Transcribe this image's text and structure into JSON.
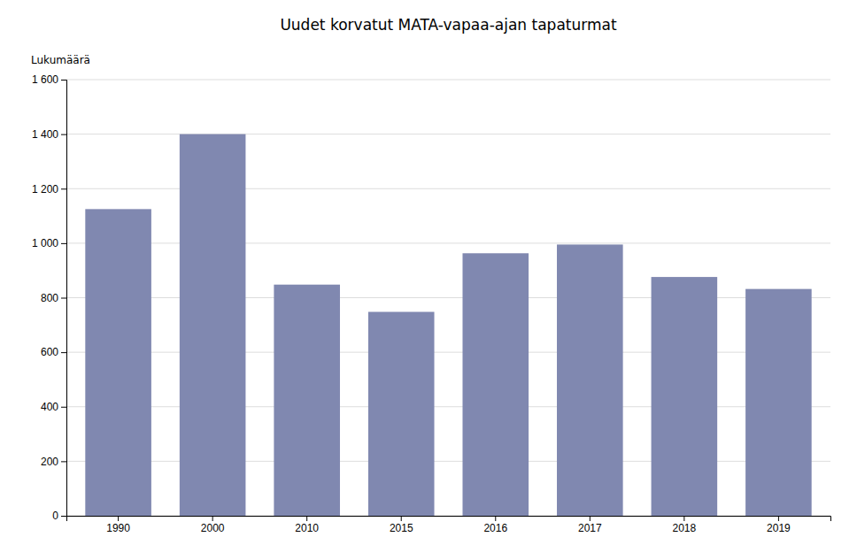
{
  "chart_data": {
    "type": "bar",
    "title": "Uudet korvatut MATA-vapaa-ajan tapaturmat",
    "ylabel": "Lukumäärä",
    "categories": [
      "1990",
      "2000",
      "2010",
      "2015",
      "2016",
      "2017",
      "2018",
      "2019"
    ],
    "values": [
      1125,
      1400,
      848,
      748,
      963,
      995,
      876,
      832
    ],
    "color": "#8088b0",
    "ylim": [
      0,
      1600
    ],
    "yticks": [
      0,
      200,
      400,
      600,
      800,
      {
        "value": 1000,
        "label": "1 000"
      },
      {
        "value": 1200,
        "label": "1 200"
      },
      {
        "value": 1400,
        "label": "1 400"
      },
      {
        "value": 1600,
        "label": "1 600"
      }
    ],
    "grid": true
  }
}
